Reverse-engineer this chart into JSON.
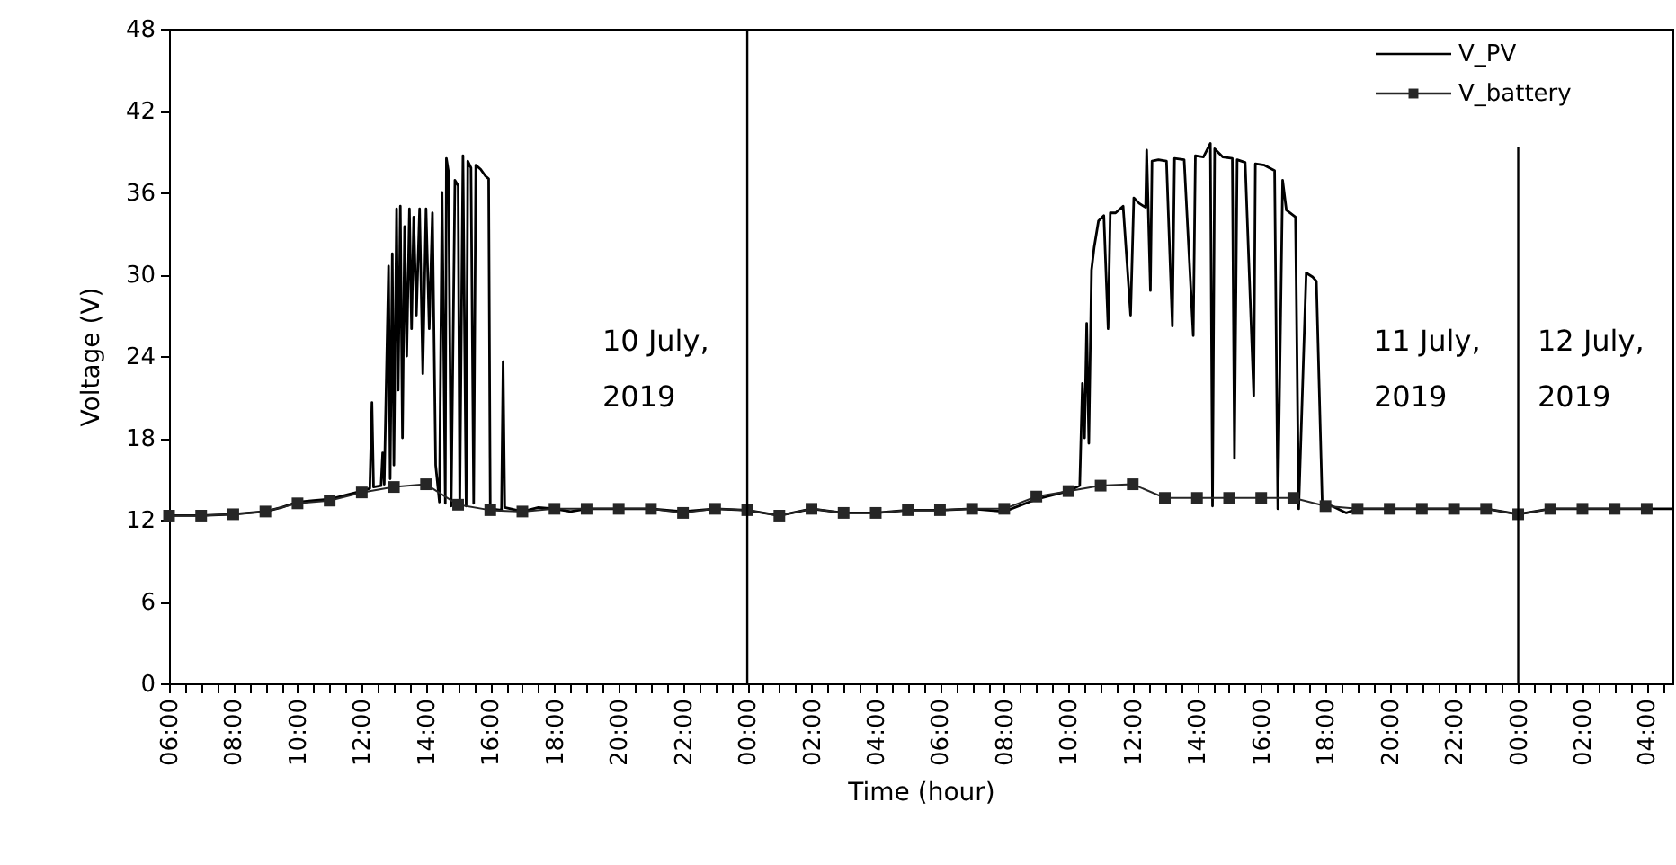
{
  "chart_data": {
    "type": "line",
    "xlabel": "Time (hour)",
    "ylabel": "Voltage (V)",
    "xlim": [
      "2019-07-10T06:00",
      "2019-07-12T04:48"
    ],
    "ylim": [
      0,
      48
    ],
    "yticks": [
      0,
      6,
      12,
      18,
      24,
      30,
      36,
      42,
      48
    ],
    "xticks": [
      {
        "value": "2019-07-10T06:00",
        "label": "06:00"
      },
      {
        "value": "2019-07-10T06:30",
        "label": null
      },
      {
        "value": "2019-07-10T07:00",
        "label": null
      },
      {
        "value": "2019-07-10T07:30",
        "label": null
      },
      {
        "value": "2019-07-10T08:00",
        "label": "08:00"
      },
      {
        "value": "2019-07-10T08:30",
        "label": null
      },
      {
        "value": "2019-07-10T09:00",
        "label": null
      },
      {
        "value": "2019-07-10T09:30",
        "label": null
      },
      {
        "value": "2019-07-10T10:00",
        "label": "10:00"
      },
      {
        "value": "2019-07-10T10:30",
        "label": null
      },
      {
        "value": "2019-07-10T11:00",
        "label": null
      },
      {
        "value": "2019-07-10T11:30",
        "label": null
      },
      {
        "value": "2019-07-10T12:00",
        "label": "12:00"
      },
      {
        "value": "2019-07-10T12:30",
        "label": null
      },
      {
        "value": "2019-07-10T13:00",
        "label": null
      },
      {
        "value": "2019-07-10T13:30",
        "label": null
      },
      {
        "value": "2019-07-10T14:00",
        "label": "14:00"
      },
      {
        "value": "2019-07-10T14:30",
        "label": null
      },
      {
        "value": "2019-07-10T15:00",
        "label": null
      },
      {
        "value": "2019-07-10T15:30",
        "label": null
      },
      {
        "value": "2019-07-10T16:00",
        "label": "16:00"
      },
      {
        "value": "2019-07-10T16:30",
        "label": null
      },
      {
        "value": "2019-07-10T17:00",
        "label": null
      },
      {
        "value": "2019-07-10T17:30",
        "label": null
      },
      {
        "value": "2019-07-10T18:00",
        "label": "18:00"
      },
      {
        "value": "2019-07-10T18:30",
        "label": null
      },
      {
        "value": "2019-07-10T19:00",
        "label": null
      },
      {
        "value": "2019-07-10T19:30",
        "label": null
      },
      {
        "value": "2019-07-10T20:00",
        "label": "20:00"
      },
      {
        "value": "2019-07-10T20:30",
        "label": null
      },
      {
        "value": "2019-07-10T21:00",
        "label": null
      },
      {
        "value": "2019-07-10T21:30",
        "label": null
      },
      {
        "value": "2019-07-10T22:00",
        "label": "22:00"
      },
      {
        "value": "2019-07-10T22:30",
        "label": null
      },
      {
        "value": "2019-07-10T23:00",
        "label": null
      },
      {
        "value": "2019-07-10T23:30",
        "label": null
      },
      {
        "value": "2019-07-11T00:00",
        "label": "00:00"
      },
      {
        "value": "2019-07-11T00:30",
        "label": null
      },
      {
        "value": "2019-07-11T01:00",
        "label": null
      },
      {
        "value": "2019-07-11T01:30",
        "label": null
      },
      {
        "value": "2019-07-11T02:00",
        "label": "02:00"
      },
      {
        "value": "2019-07-11T02:30",
        "label": null
      },
      {
        "value": "2019-07-11T03:00",
        "label": null
      },
      {
        "value": "2019-07-11T03:30",
        "label": null
      },
      {
        "value": "2019-07-11T04:00",
        "label": "04:00"
      },
      {
        "value": "2019-07-11T04:30",
        "label": null
      },
      {
        "value": "2019-07-11T05:00",
        "label": null
      },
      {
        "value": "2019-07-11T05:30",
        "label": null
      },
      {
        "value": "2019-07-11T06:00",
        "label": "06:00"
      },
      {
        "value": "2019-07-11T06:30",
        "label": null
      },
      {
        "value": "2019-07-11T07:00",
        "label": null
      },
      {
        "value": "2019-07-11T07:30",
        "label": null
      },
      {
        "value": "2019-07-11T08:00",
        "label": "08:00"
      },
      {
        "value": "2019-07-11T08:30",
        "label": null
      },
      {
        "value": "2019-07-11T09:00",
        "label": null
      },
      {
        "value": "2019-07-11T09:30",
        "label": null
      },
      {
        "value": "2019-07-11T10:00",
        "label": "10:00"
      },
      {
        "value": "2019-07-11T10:30",
        "label": null
      },
      {
        "value": "2019-07-11T11:00",
        "label": null
      },
      {
        "value": "2019-07-11T11:30",
        "label": null
      },
      {
        "value": "2019-07-11T12:00",
        "label": "12:00"
      },
      {
        "value": "2019-07-11T12:30",
        "label": null
      },
      {
        "value": "2019-07-11T13:00",
        "label": null
      },
      {
        "value": "2019-07-11T13:30",
        "label": null
      },
      {
        "value": "2019-07-11T14:00",
        "label": "14:00"
      },
      {
        "value": "2019-07-11T14:30",
        "label": null
      },
      {
        "value": "2019-07-11T15:00",
        "label": null
      },
      {
        "value": "2019-07-11T15:30",
        "label": null
      },
      {
        "value": "2019-07-11T16:00",
        "label": "16:00"
      },
      {
        "value": "2019-07-11T16:30",
        "label": null
      },
      {
        "value": "2019-07-11T17:00",
        "label": null
      },
      {
        "value": "2019-07-11T17:30",
        "label": null
      },
      {
        "value": "2019-07-11T18:00",
        "label": "18:00"
      },
      {
        "value": "2019-07-11T18:30",
        "label": null
      },
      {
        "value": "2019-07-11T19:00",
        "label": null
      },
      {
        "value": "2019-07-11T19:30",
        "label": null
      },
      {
        "value": "2019-07-11T20:00",
        "label": "20:00"
      },
      {
        "value": "2019-07-11T20:30",
        "label": null
      },
      {
        "value": "2019-07-11T21:00",
        "label": null
      },
      {
        "value": "2019-07-11T21:30",
        "label": null
      },
      {
        "value": "2019-07-11T22:00",
        "label": "22:00"
      },
      {
        "value": "2019-07-11T22:30",
        "label": null
      },
      {
        "value": "2019-07-11T23:00",
        "label": null
      },
      {
        "value": "2019-07-11T23:30",
        "label": null
      },
      {
        "value": "2019-07-12T00:00",
        "label": "00:00"
      },
      {
        "value": "2019-07-12T00:30",
        "label": null
      },
      {
        "value": "2019-07-12T01:00",
        "label": null
      },
      {
        "value": "2019-07-12T01:30",
        "label": null
      },
      {
        "value": "2019-07-12T02:00",
        "label": "02:00"
      },
      {
        "value": "2019-07-12T02:30",
        "label": null
      },
      {
        "value": "2019-07-12T03:00",
        "label": null
      },
      {
        "value": "2019-07-12T03:30",
        "label": null
      },
      {
        "value": "2019-07-12T04:00",
        "label": "04:00"
      },
      {
        "value": "2019-07-12T04:30",
        "label": null
      }
    ],
    "legend": "top right",
    "series": [
      {
        "name": "V_PV",
        "color": "#000000",
        "x": [
          "2019-07-10T06:00",
          "2019-07-10T07:00",
          "2019-07-10T08:00",
          "2019-07-10T09:00",
          "2019-07-10T09:30",
          "2019-07-10T10:00",
          "2019-07-10T10:30",
          "2019-07-10T11:00",
          "2019-07-10T11:30",
          "2019-07-10T12:00",
          "2019-07-10T12:15",
          "2019-07-10T12:19",
          "2019-07-10T12:22",
          "2019-07-10T12:36",
          "2019-07-10T12:39",
          "2019-07-10T12:42",
          "2019-07-10T12:50",
          "2019-07-10T12:53",
          "2019-07-10T12:57",
          "2019-07-10T13:00",
          "2019-07-10T13:05",
          "2019-07-10T13:08",
          "2019-07-10T13:12",
          "2019-07-10T13:16",
          "2019-07-10T13:20",
          "2019-07-10T13:24",
          "2019-07-10T13:29",
          "2019-07-10T13:33",
          "2019-07-10T13:37",
          "2019-07-10T13:42",
          "2019-07-10T13:48",
          "2019-07-10T13:54",
          "2019-07-10T14:00",
          "2019-07-10T14:06",
          "2019-07-10T14:12",
          "2019-07-10T14:18",
          "2019-07-10T14:25",
          "2019-07-10T14:30",
          "2019-07-10T14:36",
          "2019-07-10T14:38",
          "2019-07-10T14:42",
          "2019-07-10T14:47",
          "2019-07-10T14:54",
          "2019-07-10T15:00",
          "2019-07-10T15:03",
          "2019-07-10T15:09",
          "2019-07-10T15:15",
          "2019-07-10T15:18",
          "2019-07-10T15:24",
          "2019-07-10T15:29",
          "2019-07-10T15:33",
          "2019-07-10T15:42",
          "2019-07-10T15:51",
          "2019-07-10T15:57",
          "2019-07-10T16:00",
          "2019-07-10T16:21",
          "2019-07-10T16:24",
          "2019-07-10T16:27",
          "2019-07-10T17:00",
          "2019-07-10T17:30",
          "2019-07-10T18:00",
          "2019-07-10T18:30",
          "2019-07-10T19:00",
          "2019-07-10T20:00",
          "2019-07-10T21:00",
          "2019-07-10T22:00",
          "2019-07-10T23:00",
          "2019-07-11T00:00",
          "2019-07-11T01:00",
          "2019-07-11T02:00",
          "2019-07-11T03:00",
          "2019-07-11T04:00",
          "2019-07-11T05:00",
          "2019-07-11T06:00",
          "2019-07-11T07:00",
          "2019-07-11T08:00",
          "2019-07-11T09:00",
          "2019-07-11T10:00",
          "2019-07-11T10:21",
          "2019-07-11T10:26",
          "2019-07-11T10:30",
          "2019-07-11T10:34",
          "2019-07-11T10:38",
          "2019-07-11T10:43",
          "2019-07-11T10:48",
          "2019-07-11T10:56",
          "2019-07-11T11:06",
          "2019-07-11T11:14",
          "2019-07-11T11:18",
          "2019-07-11T11:28",
          "2019-07-11T11:42",
          "2019-07-11T11:56",
          "2019-07-11T12:02",
          "2019-07-11T12:12",
          "2019-07-11T12:24",
          "2019-07-11T12:26",
          "2019-07-11T12:33",
          "2019-07-11T12:36",
          "2019-07-11T12:48",
          "2019-07-11T13:03",
          "2019-07-11T13:14",
          "2019-07-11T13:18",
          "2019-07-11T13:36",
          "2019-07-11T13:53",
          "2019-07-11T13:57",
          "2019-07-11T14:12",
          "2019-07-11T14:25",
          "2019-07-11T14:29",
          "2019-07-11T14:33",
          "2019-07-11T14:48",
          "2019-07-11T15:06",
          "2019-07-11T15:10",
          "2019-07-11T15:15",
          "2019-07-11T15:30",
          "2019-07-11T15:46",
          "2019-07-11T15:49",
          "2019-07-11T16:06",
          "2019-07-11T16:25",
          "2019-07-11T16:31",
          "2019-07-11T16:40",
          "2019-07-11T16:47",
          "2019-07-11T17:04",
          "2019-07-11T17:10",
          "2019-07-11T17:24",
          "2019-07-11T17:36",
          "2019-07-11T17:43",
          "2019-07-11T17:54",
          "2019-07-11T18:12",
          "2019-07-11T18:39",
          "2019-07-11T19:00",
          "2019-07-11T20:00",
          "2019-07-11T21:00",
          "2019-07-11T22:00",
          "2019-07-11T23:00",
          "2019-07-12T00:00",
          "2019-07-12T01:00",
          "2019-07-12T02:00",
          "2019-07-12T03:00",
          "2019-07-12T04:00",
          "2019-07-12T04:48"
        ],
        "values": [
          12.3,
          12.3,
          12.4,
          12.6,
          12.9,
          13.3,
          13.4,
          13.5,
          13.8,
          14.1,
          14.3,
          20.6,
          14.4,
          14.5,
          16.9,
          14.6,
          30.6,
          15.0,
          31.5,
          16.0,
          34.8,
          21.5,
          35.0,
          18.0,
          33.5,
          24.0,
          34.8,
          26.0,
          34.2,
          27.0,
          34.8,
          22.7,
          34.8,
          26.0,
          34.5,
          16.0,
          13.3,
          36.0,
          13.2,
          38.5,
          37.5,
          13.0,
          36.9,
          36.5,
          13.0,
          38.7,
          13.0,
          38.3,
          37.8,
          13.2,
          38.0,
          37.7,
          37.2,
          37.0,
          12.8,
          12.7,
          23.6,
          12.9,
          12.6,
          12.9,
          12.8,
          12.6,
          12.8,
          12.8,
          12.8,
          12.6,
          12.8,
          12.7,
          12.3,
          12.8,
          12.5,
          12.5,
          12.7,
          12.7,
          12.8,
          12.6,
          13.5,
          14.1,
          14.5,
          22.0,
          18.0,
          26.4,
          17.6,
          30.3,
          32.0,
          33.9,
          34.3,
          26.0,
          34.5,
          34.5,
          35.0,
          27.0,
          35.6,
          35.2,
          34.9,
          39.1,
          28.8,
          38.3,
          38.4,
          38.3,
          26.2,
          38.5,
          38.4,
          25.5,
          38.7,
          38.6,
          39.6,
          13.0,
          39.2,
          38.6,
          38.5,
          16.5,
          38.4,
          38.2,
          21.1,
          38.1,
          38.0,
          37.6,
          12.8,
          36.9,
          34.7,
          34.2,
          12.8,
          30.1,
          29.8,
          29.5,
          13.2,
          13.0,
          12.5,
          12.8,
          12.8,
          12.8,
          12.8,
          12.8,
          12.4,
          12.8,
          12.8,
          12.8,
          12.8,
          12.8
        ]
      },
      {
        "name": "V_battery",
        "color": "#262626",
        "marker": "square",
        "x": [
          "2019-07-10T06:00",
          "2019-07-10T07:00",
          "2019-07-10T08:00",
          "2019-07-10T09:00",
          "2019-07-10T10:00",
          "2019-07-10T11:00",
          "2019-07-10T12:00",
          "2019-07-10T13:00",
          "2019-07-10T14:00",
          "2019-07-10T15:00",
          "2019-07-10T16:00",
          "2019-07-10T17:00",
          "2019-07-10T18:00",
          "2019-07-10T19:00",
          "2019-07-10T20:00",
          "2019-07-10T21:00",
          "2019-07-10T22:00",
          "2019-07-10T23:00",
          "2019-07-11T00:00",
          "2019-07-11T01:00",
          "2019-07-11T02:00",
          "2019-07-11T03:00",
          "2019-07-11T04:00",
          "2019-07-11T05:00",
          "2019-07-11T06:00",
          "2019-07-11T07:00",
          "2019-07-11T08:00",
          "2019-07-11T09:00",
          "2019-07-11T10:00",
          "2019-07-11T11:00",
          "2019-07-11T12:00",
          "2019-07-11T13:00",
          "2019-07-11T14:00",
          "2019-07-11T15:00",
          "2019-07-11T16:00",
          "2019-07-11T17:00",
          "2019-07-11T18:00",
          "2019-07-11T19:00",
          "2019-07-11T20:00",
          "2019-07-11T21:00",
          "2019-07-11T22:00",
          "2019-07-11T23:00",
          "2019-07-12T00:00",
          "2019-07-12T01:00",
          "2019-07-12T02:00",
          "2019-07-12T03:00",
          "2019-07-12T04:00"
        ],
        "values": [
          12.3,
          12.3,
          12.4,
          12.6,
          13.2,
          13.4,
          14.0,
          14.4,
          14.6,
          13.1,
          12.7,
          12.6,
          12.8,
          12.8,
          12.8,
          12.8,
          12.5,
          12.8,
          12.7,
          12.3,
          12.8,
          12.5,
          12.5,
          12.7,
          12.7,
          12.8,
          12.8,
          13.7,
          14.1,
          14.5,
          14.6,
          13.6,
          13.6,
          13.6,
          13.6,
          13.6,
          13.0,
          12.8,
          12.8,
          12.8,
          12.8,
          12.8,
          12.4,
          12.8,
          12.8,
          12.8,
          12.8
        ]
      }
    ],
    "ref_lines": [
      {
        "axis": "x",
        "value": "2019-07-11T00:00"
      },
      {
        "axis": "x",
        "value": "2019-07-12T00:00"
      }
    ],
    "annotations": [
      "10 July, 2019",
      "11 July, 2019",
      "12 July, 2019"
    ]
  }
}
